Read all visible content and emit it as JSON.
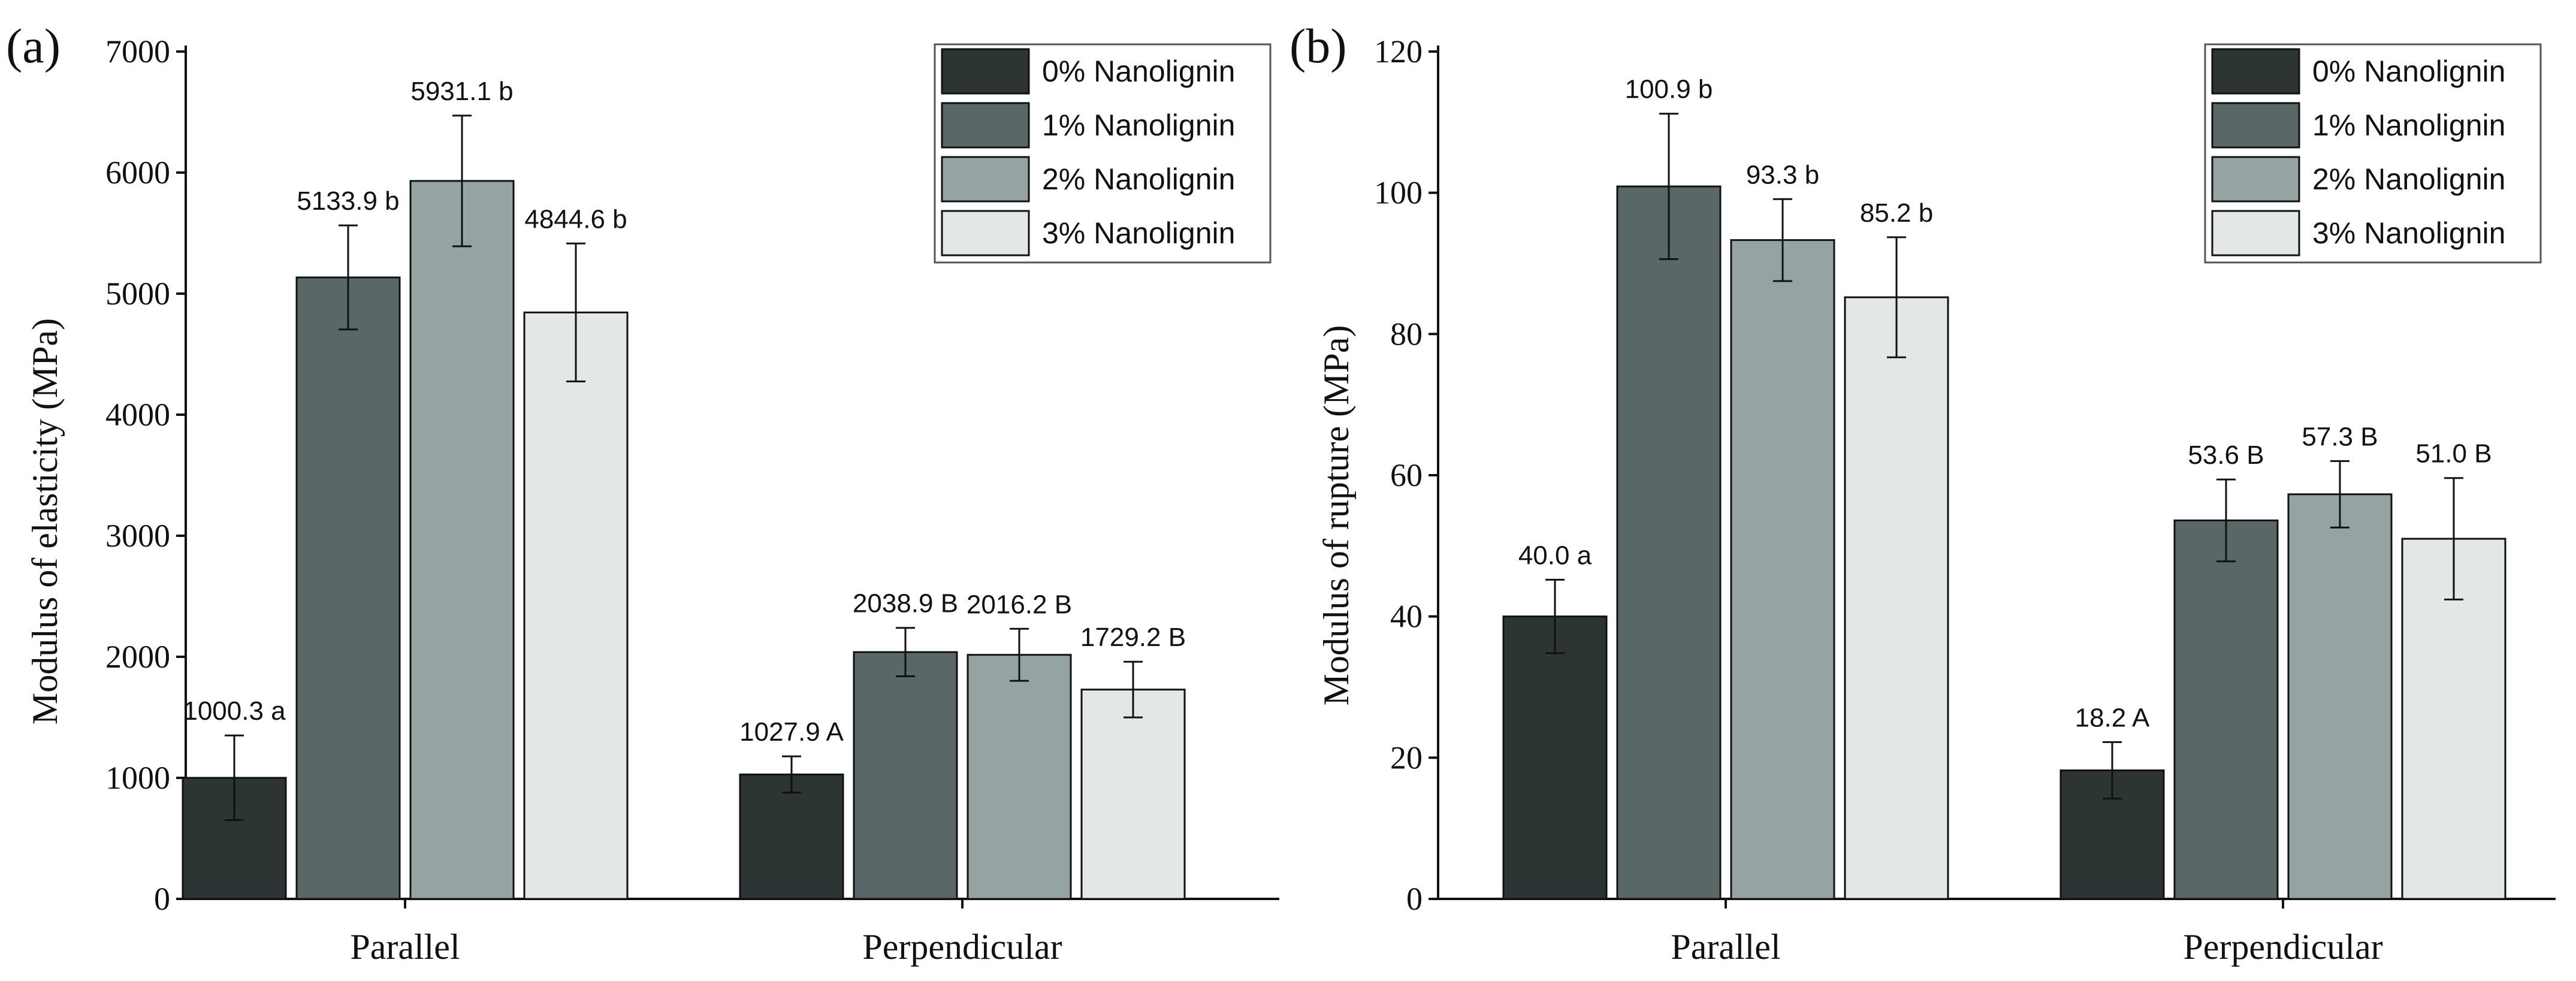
{
  "colors": {
    "0% Nanolignin": "#2d3434",
    "1% Nanolignin": "#5a6767",
    "2% Nanolignin": "#95a3a2",
    "3% Nanolignin": "#e3e8e6",
    "axis": "#111111"
  },
  "chart_data": [
    {
      "type": "bar",
      "panel_label": "(a)",
      "title": "",
      "xlabel": "",
      "ylabel": "Modulus of elasticity (MPa)",
      "ylim": [
        0,
        7000
      ],
      "yticks": [
        0,
        1000,
        2000,
        3000,
        4000,
        5000,
        6000,
        7000
      ],
      "grid": false,
      "legend_position": "top-right",
      "categories": [
        "Parallel",
        "Perpendicular"
      ],
      "series": [
        {
          "name": "0% Nanolignin",
          "values": [
            1000.3,
            1027.9
          ],
          "errors": [
            350,
            150
          ],
          "labels": [
            "1000.3 a",
            "1027.9 A"
          ]
        },
        {
          "name": "1% Nanolignin",
          "values": [
            5133.9,
            2038.9
          ],
          "errors": [
            430,
            200
          ],
          "labels": [
            "5133.9 b",
            "2038.9 B"
          ]
        },
        {
          "name": "2% Nanolignin",
          "values": [
            5931.1,
            2016.2
          ],
          "errors": [
            540,
            215
          ],
          "labels": [
            "5931.1 b",
            "2016.2 B"
          ]
        },
        {
          "name": "3% Nanolignin",
          "values": [
            4844.6,
            1729.2
          ],
          "errors": [
            570,
            230
          ],
          "labels": [
            "4844.6 b",
            "1729.2 B"
          ]
        }
      ]
    },
    {
      "type": "bar",
      "panel_label": "(b)",
      "title": "",
      "xlabel": "",
      "ylabel": "Modulus of rupture (MPa)",
      "ylim": [
        0,
        120
      ],
      "yticks": [
        0,
        20,
        40,
        60,
        80,
        100,
        120
      ],
      "grid": false,
      "legend_position": "top-right",
      "categories": [
        "Parallel",
        "Perpendicular"
      ],
      "series": [
        {
          "name": "0% Nanolignin",
          "values": [
            40.0,
            18.2
          ],
          "errors": [
            5.2,
            4.0
          ],
          "labels": [
            "40.0 a",
            "18.2 A"
          ]
        },
        {
          "name": "1% Nanolignin",
          "values": [
            100.9,
            53.6
          ],
          "errors": [
            10.3,
            5.8
          ],
          "labels": [
            "100.9 b",
            "53.6 B"
          ]
        },
        {
          "name": "2% Nanolignin",
          "values": [
            93.3,
            57.3
          ],
          "errors": [
            5.8,
            4.7
          ],
          "labels": [
            "93.3 b",
            "57.3 B"
          ]
        },
        {
          "name": "3% Nanolignin",
          "values": [
            85.2,
            51.0
          ],
          "errors": [
            8.5,
            8.6
          ],
          "labels": [
            "85.2 b",
            "51.0 B"
          ]
        }
      ]
    }
  ]
}
